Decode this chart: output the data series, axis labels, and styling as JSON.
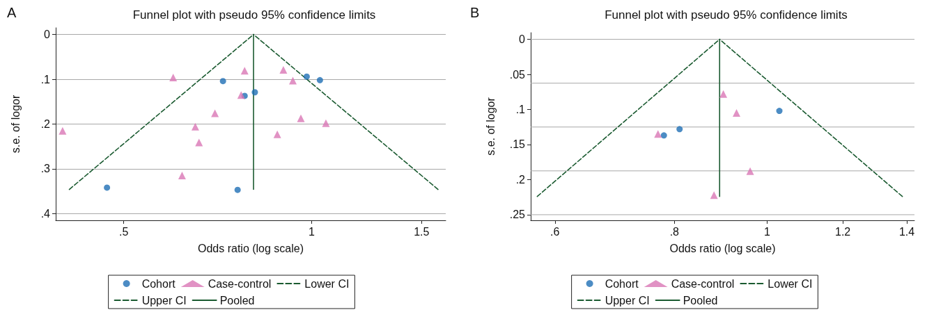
{
  "chart_data": [
    {
      "type": "scatter",
      "title": "Funnel plot with pseudo 95% confidence limits",
      "xlabel": "Odds ratio (log scale)",
      "ylabel": "s.e. of logor",
      "annotations": [
        "A"
      ],
      "log": "x",
      "grid": "y",
      "legend": "bottom",
      "xlim": [
        0.389,
        1.64
      ],
      "xticks": [
        {
          "value": 0.5,
          "label": ".5"
        },
        1,
        1.5
      ],
      "ylim": [
        0.415,
        -0.015
      ],
      "yticks": [
        0,
        {
          "value": 0.1,
          "label": ".1"
        },
        {
          "value": 0.2,
          "label": ".2"
        },
        {
          "value": 0.3,
          "label": ".3"
        },
        {
          "value": 0.4,
          "label": ".4"
        }
      ],
      "series": [
        {
          "name": "Cohort",
          "type": "scatter",
          "marker": "circle",
          "color": "#1f6fb5",
          "x": [
            0.721,
            0.781,
            0.811,
            0.982,
            1.031,
            0.47,
            0.761
          ],
          "values": [
            0.104,
            0.137,
            0.129,
            0.094,
            0.102,
            0.342,
            0.347
          ]
        },
        {
          "name": "Case-control",
          "type": "scatter",
          "marker": "triangle",
          "color": "#d977b5",
          "x": [
            0.399,
            0.6,
            0.781,
            0.771,
            0.7,
            0.651,
            0.66,
            0.62,
            0.901,
            0.933,
            0.961,
            1.054,
            0.881
          ],
          "values": [
            0.215,
            0.096,
            0.081,
            0.135,
            0.176,
            0.206,
            0.241,
            0.315,
            0.079,
            0.103,
            0.187,
            0.198,
            0.223
          ]
        },
        {
          "name": "Lower CI",
          "type": "line",
          "marker": "none",
          "line_style": "dashed",
          "color": "#1a5a30",
          "x": [
            0.409,
            0.807
          ],
          "values": [
            0.346,
            0
          ]
        },
        {
          "name": "Upper CI",
          "type": "line",
          "marker": "none",
          "line_style": "dashed",
          "color": "#1a5a30",
          "x": [
            1.594,
            0.807
          ],
          "values": [
            0.346,
            0
          ]
        },
        {
          "name": "Pooled",
          "type": "line",
          "marker": "none",
          "line_style": "solid",
          "color": "#1a5a30",
          "x": [
            0.807,
            0.807
          ],
          "values": [
            0,
            0.346
          ]
        }
      ]
    },
    {
      "type": "scatter",
      "title": "Funnel plot with pseudo 95% confidence limits",
      "xlabel": "Odds ratio (log scale)",
      "ylabel": "s.e. of logor",
      "annotations": [
        "B"
      ],
      "log": "x",
      "legend": "bottom",
      "xlim": [
        0.566,
        1.426
      ],
      "xticks": [
        {
          "value": 0.6,
          "label": ".6"
        },
        {
          "value": 0.8,
          "label": ".8"
        },
        1,
        1.2,
        1.4
      ],
      "ylim": [
        0.258,
        -0.0095
      ],
      "yticks": [
        0,
        {
          "value": 0.05,
          "label": ".05"
        },
        {
          "value": 0.1,
          "label": ".1"
        },
        {
          "value": 0.15,
          "label": ".15"
        },
        {
          "value": 0.2,
          "label": ".2"
        },
        {
          "value": 0.25,
          "label": ".25"
        }
      ],
      "ref_lines": [
        {
          "axis": "y",
          "value": 0,
          "color": "#a8a8a8",
          "line_style": "solid"
        },
        {
          "axis": "y",
          "value": 0.0625,
          "color": "#a8a8a8",
          "line_style": "solid"
        },
        {
          "axis": "y",
          "value": 0.125,
          "color": "#a8a8a8",
          "line_style": "solid"
        },
        {
          "axis": "y",
          "value": 0.1875,
          "color": "#a8a8a8",
          "line_style": "solid"
        },
        {
          "axis": "y",
          "value": 0.25,
          "color": "#a8a8a8",
          "line_style": "solid"
        }
      ],
      "series": [
        {
          "name": "Cohort",
          "type": "scatter",
          "marker": "circle",
          "color": "#1f6fb5",
          "x": [
            0.81,
            0.78,
            1.03
          ],
          "values": [
            0.128,
            0.137,
            0.102
          ]
        },
        {
          "name": "Case-control",
          "type": "scatter",
          "marker": "triangle",
          "color": "#d977b5",
          "x": [
            0.769,
            0.9,
            0.929,
            0.96,
            0.88
          ],
          "values": [
            0.135,
            0.078,
            0.105,
            0.188,
            0.222
          ]
        },
        {
          "name": "Lower CI",
          "type": "line",
          "marker": "none",
          "line_style": "dashed",
          "color": "#1a5a30",
          "x": [
            0.575,
            0.892
          ],
          "values": [
            0.224,
            0
          ]
        },
        {
          "name": "Upper CI",
          "type": "line",
          "marker": "none",
          "line_style": "dashed",
          "color": "#1a5a30",
          "x": [
            1.385,
            0.892
          ],
          "values": [
            0.224,
            0
          ]
        },
        {
          "name": "Pooled",
          "type": "line",
          "marker": "none",
          "line_style": "solid",
          "color": "#1a5a30",
          "x": [
            0.892,
            0.892
          ],
          "values": [
            0,
            0.224
          ]
        }
      ]
    }
  ]
}
